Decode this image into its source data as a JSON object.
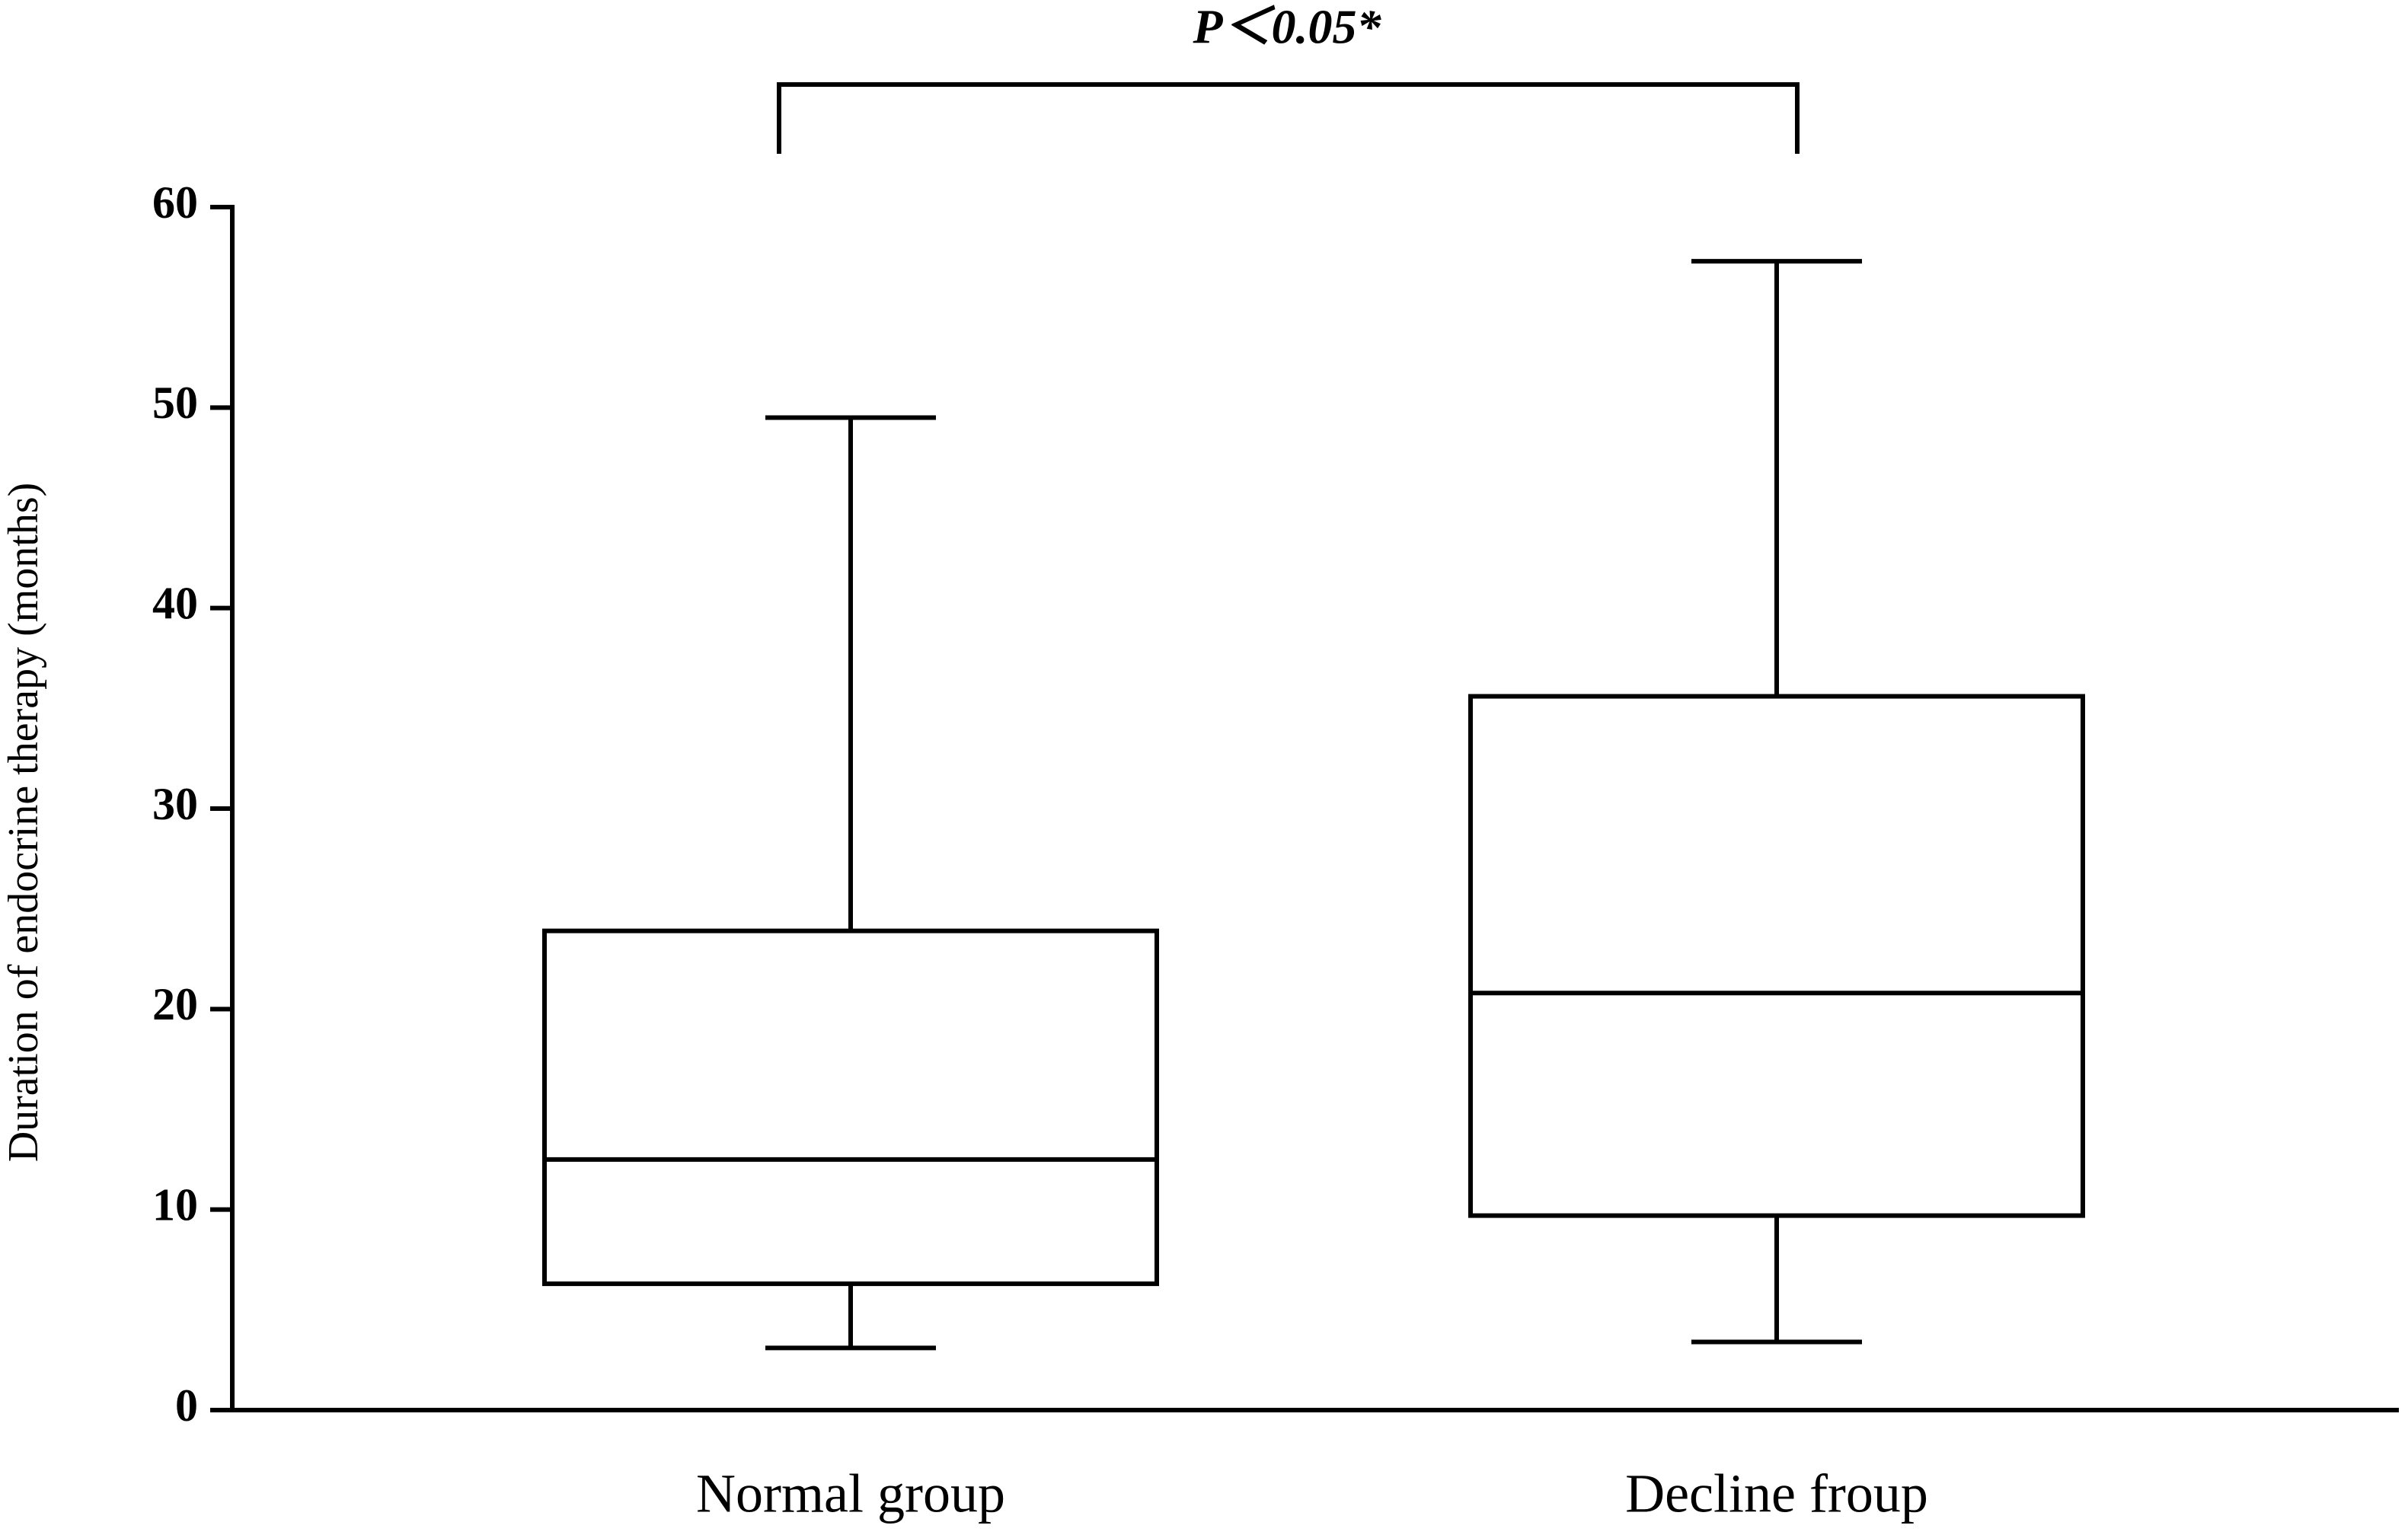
{
  "chart_data": {
    "type": "box",
    "annotation": "P＜0.05*",
    "y_label": "Duration of endocrine therapy (months)",
    "categories": [
      "Normal group",
      "Decline froup"
    ],
    "boxes": [
      {
        "min": 3.1,
        "q1": 6.3,
        "median": 12.5,
        "q3": 23.9,
        "max": 49.5
      },
      {
        "min": 3.4,
        "q1": 9.7,
        "median": 20.8,
        "q3": 35.6,
        "max": 57.3
      }
    ],
    "color": "#000000",
    "ylim": [
      0,
      60
    ],
    "yticks": [
      0,
      10,
      20,
      30,
      40,
      50,
      60
    ]
  }
}
